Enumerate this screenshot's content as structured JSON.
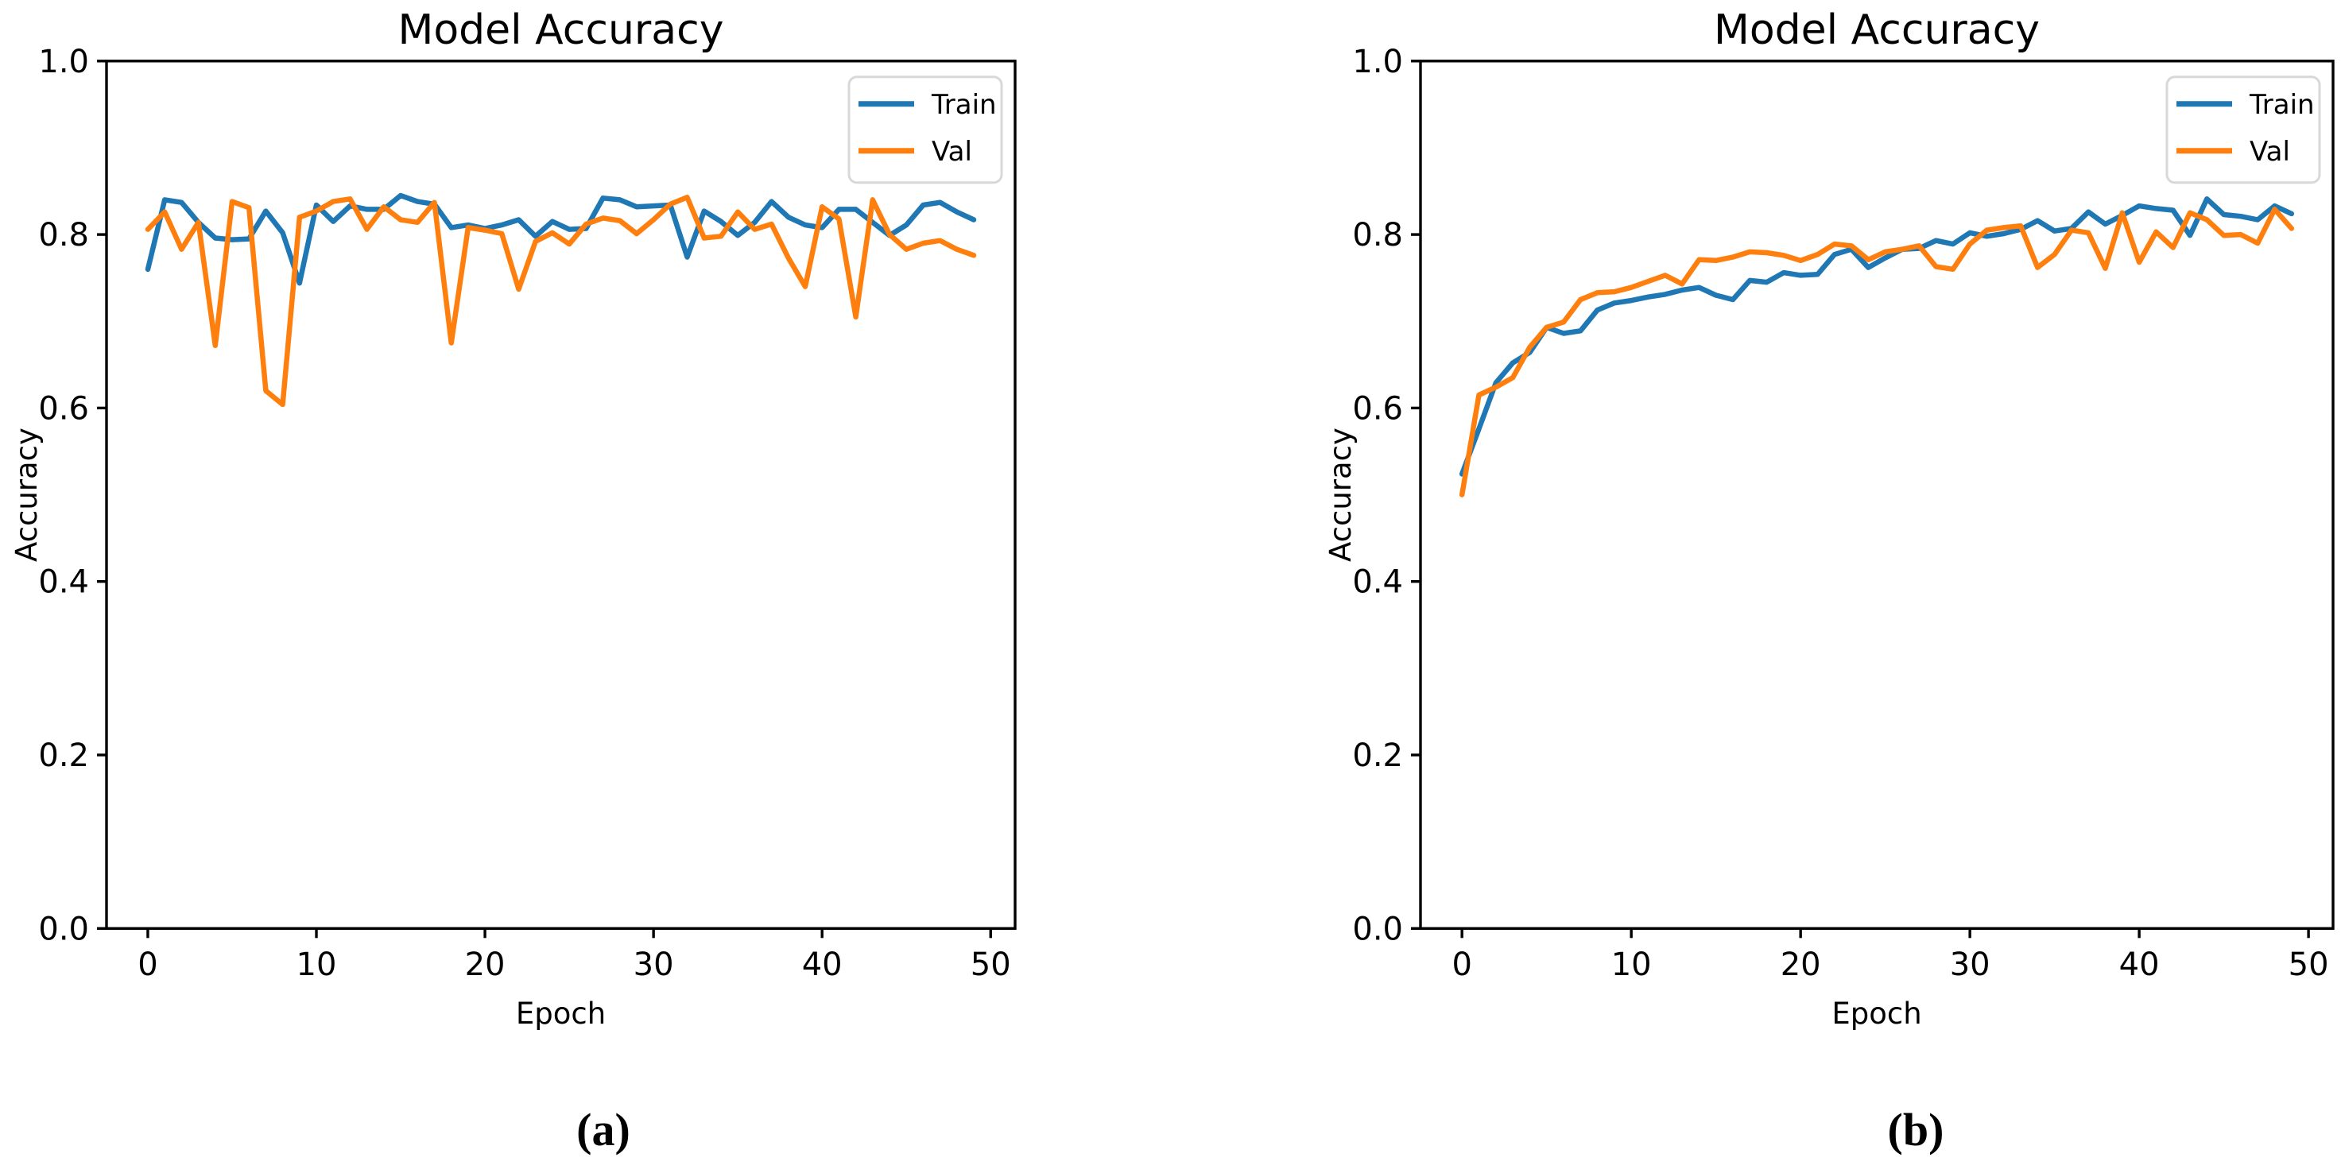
{
  "figure": {
    "background": "#ffffff",
    "text_color": "#000000",
    "legend_border_color": "#d8d8d8",
    "accent_train": "#1f77b4",
    "accent_val": "#ff7f0e"
  },
  "chart_data": [
    {
      "type": "line",
      "title": "Model Accuracy",
      "xlabel": "Epoch",
      "ylabel": "Accuracy",
      "caption": "(a)",
      "legend": {
        "position": "upper right",
        "entries": [
          "Train",
          "Val"
        ]
      },
      "grid": false,
      "xlim": [
        -2.45,
        51.45
      ],
      "ylim": [
        0.0,
        1.0
      ],
      "xticks": [
        0,
        10,
        20,
        30,
        40,
        50
      ],
      "yticks": [
        0.0,
        0.2,
        0.4,
        0.6,
        0.8,
        1.0
      ],
      "x": [
        0,
        1,
        2,
        3,
        4,
        5,
        6,
        7,
        8,
        9,
        10,
        11,
        12,
        13,
        14,
        15,
        16,
        17,
        18,
        19,
        20,
        21,
        22,
        23,
        24,
        25,
        26,
        27,
        28,
        29,
        30,
        31,
        32,
        33,
        34,
        35,
        36,
        37,
        38,
        39,
        40,
        41,
        42,
        43,
        44,
        45,
        46,
        47,
        48,
        49
      ],
      "series": [
        {
          "name": "Train",
          "color": "#1f77b4",
          "values": [
            0.76,
            0.84,
            0.837,
            0.814,
            0.796,
            0.794,
            0.795,
            0.827,
            0.802,
            0.744,
            0.834,
            0.815,
            0.833,
            0.829,
            0.829,
            0.845,
            0.838,
            0.835,
            0.808,
            0.811,
            0.807,
            0.811,
            0.817,
            0.798,
            0.815,
            0.806,
            0.807,
            0.842,
            0.84,
            0.832,
            0.833,
            0.834,
            0.774,
            0.827,
            0.815,
            0.799,
            0.814,
            0.838,
            0.82,
            0.811,
            0.808,
            0.829,
            0.829,
            0.814,
            0.799,
            0.811,
            0.834,
            0.837,
            0.826,
            0.817
          ]
        },
        {
          "name": "Val",
          "color": "#ff7f0e",
          "values": [
            0.806,
            0.826,
            0.783,
            0.814,
            0.672,
            0.838,
            0.831,
            0.62,
            0.604,
            0.82,
            0.827,
            0.838,
            0.841,
            0.806,
            0.832,
            0.817,
            0.814,
            0.837,
            0.675,
            0.808,
            0.805,
            0.801,
            0.737,
            0.792,
            0.802,
            0.789,
            0.812,
            0.819,
            0.816,
            0.801,
            0.817,
            0.835,
            0.843,
            0.796,
            0.798,
            0.826,
            0.806,
            0.812,
            0.773,
            0.74,
            0.832,
            0.818,
            0.705,
            0.84,
            0.8,
            0.783,
            0.79,
            0.793,
            0.783,
            0.776
          ]
        }
      ]
    },
    {
      "type": "line",
      "title": "Model Accuracy",
      "xlabel": "Epoch",
      "ylabel": "Accuracy",
      "caption": "(b)",
      "legend": {
        "position": "upper right",
        "entries": [
          "Train",
          "Val"
        ]
      },
      "grid": false,
      "xlim": [
        -2.45,
        51.45
      ],
      "ylim": [
        0.0,
        1.0
      ],
      "xticks": [
        0,
        10,
        20,
        30,
        40,
        50
      ],
      "yticks": [
        0.0,
        0.2,
        0.4,
        0.6,
        0.8,
        1.0
      ],
      "x": [
        0,
        1,
        2,
        3,
        4,
        5,
        6,
        7,
        8,
        9,
        10,
        11,
        12,
        13,
        14,
        15,
        16,
        17,
        18,
        19,
        20,
        21,
        22,
        23,
        24,
        25,
        26,
        27,
        28,
        29,
        30,
        31,
        32,
        33,
        34,
        35,
        36,
        37,
        38,
        39,
        40,
        41,
        42,
        43,
        44,
        45,
        46,
        47,
        48,
        49
      ],
      "series": [
        {
          "name": "Train",
          "color": "#1f77b4",
          "values": [
            0.524,
            0.576,
            0.629,
            0.652,
            0.664,
            0.693,
            0.686,
            0.689,
            0.713,
            0.721,
            0.724,
            0.728,
            0.731,
            0.736,
            0.739,
            0.73,
            0.725,
            0.747,
            0.745,
            0.756,
            0.753,
            0.754,
            0.777,
            0.783,
            0.762,
            0.773,
            0.783,
            0.784,
            0.793,
            0.789,
            0.802,
            0.798,
            0.801,
            0.806,
            0.816,
            0.804,
            0.807,
            0.826,
            0.812,
            0.822,
            0.833,
            0.83,
            0.828,
            0.799,
            0.841,
            0.823,
            0.821,
            0.817,
            0.833,
            0.824
          ]
        },
        {
          "name": "Val",
          "color": "#ff7f0e",
          "values": [
            0.5,
            0.615,
            0.624,
            0.635,
            0.67,
            0.693,
            0.699,
            0.725,
            0.733,
            0.734,
            0.739,
            0.746,
            0.753,
            0.743,
            0.771,
            0.77,
            0.774,
            0.78,
            0.779,
            0.776,
            0.77,
            0.777,
            0.789,
            0.787,
            0.771,
            0.78,
            0.783,
            0.787,
            0.763,
            0.76,
            0.789,
            0.805,
            0.808,
            0.81,
            0.762,
            0.777,
            0.805,
            0.802,
            0.761,
            0.825,
            0.768,
            0.803,
            0.785,
            0.825,
            0.817,
            0.799,
            0.8,
            0.79,
            0.829,
            0.807
          ]
        }
      ]
    }
  ]
}
